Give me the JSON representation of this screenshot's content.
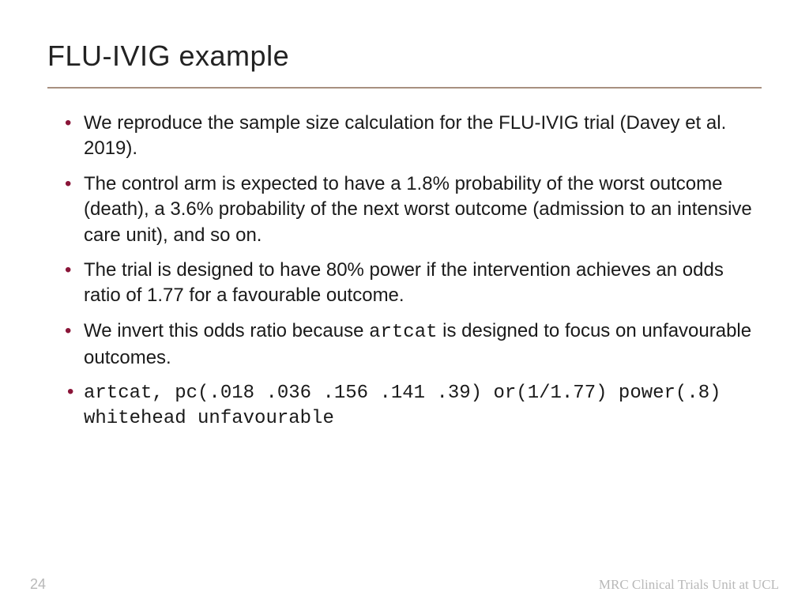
{
  "title": "FLU-IVIG example",
  "rule_color": "#a89080",
  "bullet_color": "#8a1538",
  "body_fontsize": 24,
  "title_fontsize": 36,
  "bullets": [
    {
      "pre": "We reproduce the sample size calculation for the FLU-IVIG trial (Davey et al. 2019)."
    },
    {
      "pre": "The control arm is expected to have a 1.8% probability of the worst outcome (death), a 3.6% probability of the next worst outcome (admission to an intensive care unit), and so on."
    },
    {
      "pre": "The trial is designed to have 80% power if the intervention achieves an odds ratio of 1.77 for a favourable outcome."
    },
    {
      "pre": "We invert this odds ratio because ",
      "code": "artcat",
      "post": " is designed to focus on unfavourable outcomes."
    }
  ],
  "code_line": "artcat, pc(.018 .036 .156 .141 .39) or(1/1.77) power(.8) whitehead unfavourable",
  "footer": {
    "page": "24",
    "brand": "MRC Clinical Trials Unit at UCL"
  }
}
